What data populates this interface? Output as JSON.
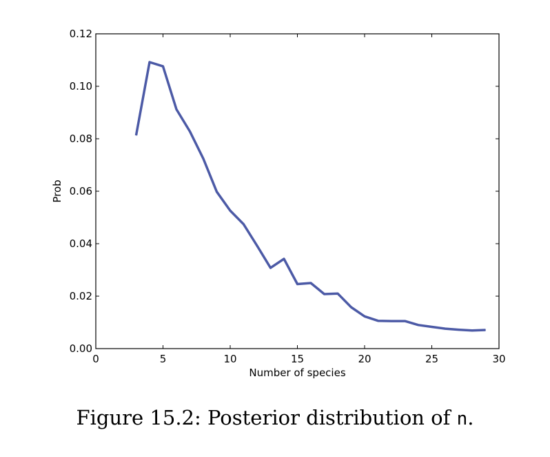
{
  "chart_data": {
    "type": "line",
    "xlabel": "Number of species",
    "ylabel": "Prob",
    "xlim": [
      0,
      30
    ],
    "ylim": [
      0.0,
      0.12
    ],
    "xticks": [
      0,
      5,
      10,
      15,
      20,
      25,
      30
    ],
    "xtick_labels": [
      "0",
      "5",
      "10",
      "15",
      "20",
      "25",
      "30"
    ],
    "yticks": [
      0.0,
      0.02,
      0.04,
      0.06,
      0.08,
      0.1,
      0.12
    ],
    "ytick_labels": [
      "0.00",
      "0.02",
      "0.04",
      "0.06",
      "0.08",
      "0.10",
      "0.12"
    ],
    "grid": false,
    "line_color": "#4c5aa6",
    "series": [
      {
        "x": [
          3,
          4,
          5,
          6,
          7,
          8,
          9,
          10,
          11,
          12,
          13,
          14,
          15,
          16,
          17,
          18,
          19,
          20,
          21,
          22,
          23,
          24,
          25,
          26,
          27,
          28,
          29
        ],
        "values": [
          0.0813,
          0.1092,
          0.1076,
          0.0912,
          0.0828,
          0.0724,
          0.0598,
          0.0526,
          0.0474,
          0.0392,
          0.0308,
          0.0342,
          0.0246,
          0.025,
          0.0208,
          0.021,
          0.0158,
          0.0123,
          0.0106,
          0.0105,
          0.0105,
          0.009,
          0.0083,
          0.0076,
          0.0072,
          0.0069,
          0.0071
        ]
      }
    ]
  },
  "caption": {
    "text": "Figure 15.2: Posterior distribution of ",
    "variable": "n",
    "end": "."
  }
}
